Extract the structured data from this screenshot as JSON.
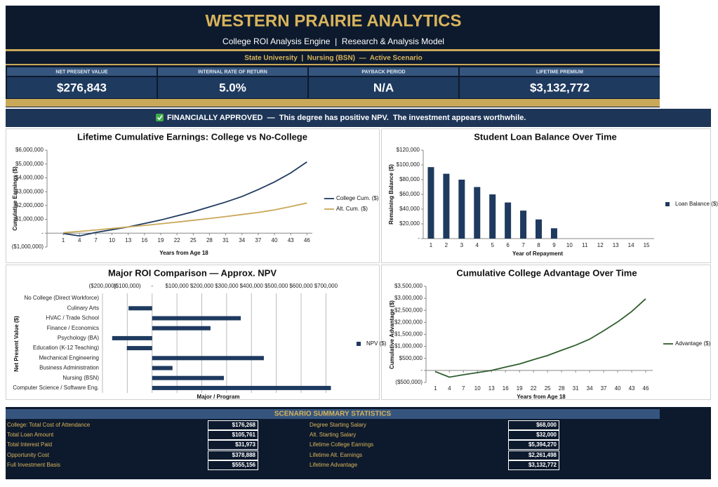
{
  "header": {
    "title": "WESTERN PRAIRIE ANALYTICS",
    "subtitle": "College ROI Analysis Engine  |  Research & Analysis Model",
    "scenario": "State University  |  Nursing (BSN)  —  Active Scenario"
  },
  "kpis": [
    {
      "label": "NET PRESENT VALUE",
      "value": "$276,843"
    },
    {
      "label": "INTERNAL RATE OF RETURN",
      "value": "5.0%"
    },
    {
      "label": "PAYBACK PERIOD",
      "value": "N/A"
    },
    {
      "label": "LIFETIME PREMIUM",
      "value": "$3,132,772"
    }
  ],
  "status": "FINANCIALLY APPROVED  —  This degree has positive NPV.  The investment appears worthwhile.",
  "chart_data": [
    {
      "type": "line",
      "title": "Lifetime Cumulative Earnings: College vs No-College",
      "x_label": "Years from Age 18",
      "y_label": "Cumulative Earnings ($)",
      "x": [
        1,
        4,
        7,
        10,
        13,
        16,
        19,
        22,
        25,
        28,
        31,
        34,
        37,
        40,
        43,
        46
      ],
      "series": [
        {
          "name": "College Cum. ($)",
          "color": "#1f3a5f",
          "values": [
            -20000,
            -200000,
            50000,
            250000,
            450000,
            700000,
            950000,
            1250000,
            1550000,
            1900000,
            2250000,
            2650000,
            3150000,
            3700000,
            4350000,
            5150000
          ]
        },
        {
          "name": "Alt. Cum. ($)",
          "color": "#c9a85a",
          "values": [
            30000,
            130000,
            230000,
            340000,
            450000,
            560000,
            680000,
            800000,
            930000,
            1060000,
            1200000,
            1350000,
            1500000,
            1680000,
            1920000,
            2180000
          ]
        }
      ],
      "xlim": [
        -2,
        47
      ],
      "xticks": [
        1,
        4,
        7,
        10,
        13,
        16,
        19,
        22,
        25,
        28,
        31,
        34,
        37,
        40,
        43,
        46
      ],
      "ylim": [
        -1000000,
        6000000
      ],
      "yticks": [
        {
          "value": -1000000,
          "label": "($1,000,000)"
        },
        {
          "value": 0,
          "label": "-"
        },
        {
          "value": 1000000,
          "label": "$1,000,000"
        },
        {
          "value": 2000000,
          "label": "$2,000,000"
        },
        {
          "value": 3000000,
          "label": "$3,000,000"
        },
        {
          "value": 4000000,
          "label": "$4,000,000"
        },
        {
          "value": 5000000,
          "label": "$5,000,000"
        },
        {
          "value": 6000000,
          "label": "$6,000,000"
        }
      ],
      "grid": false,
      "legend": "right"
    },
    {
      "type": "bar",
      "title": "Student Loan Balance Over Time",
      "x_label": "Year of Repayment",
      "y_label": "Remaining Balance ($)",
      "categories": [
        1,
        2,
        3,
        4,
        5,
        6,
        7,
        8,
        9,
        10,
        11,
        12,
        13,
        14,
        15
      ],
      "series": [
        {
          "name": "Loan Balance ($)",
          "color": "#1f3a5f",
          "values": [
            97000,
            88000,
            80000,
            70000,
            60000,
            49000,
            38000,
            26000,
            14000,
            0,
            0,
            0,
            0,
            0,
            0
          ]
        }
      ],
      "ylim": [
        0,
        120000
      ],
      "yticks": [
        {
          "value": 0,
          "label": "-"
        },
        {
          "value": 20000,
          "label": "$20,000"
        },
        {
          "value": 40000,
          "label": "$40,000"
        },
        {
          "value": 60000,
          "label": "$60,000"
        },
        {
          "value": 80000,
          "label": "$80,000"
        },
        {
          "value": 100000,
          "label": "$100,000"
        },
        {
          "value": 120000,
          "label": "$120,000"
        }
      ],
      "grid": false,
      "legend": "right"
    },
    {
      "type": "barh",
      "title": "Major ROI Comparison — Approx. NPV",
      "x_label": "Major / Program",
      "y_label": "Net Present Value ($)",
      "categories": [
        "No College (Direct Workforce)",
        "Culinary Arts",
        "HVAC / Trade School",
        "Finance / Economics",
        "Psychology (BA)",
        "Education (K-12 Teaching)",
        "Mechanical Engineering",
        "Business Administration",
        "Nursing (BSN)",
        "Computer Science / Software Eng."
      ],
      "series": [
        {
          "name": "NPV ($)",
          "color": "#1f3a5f",
          "values": [
            0,
            -95000,
            357000,
            235000,
            -161000,
            -102000,
            450000,
            82000,
            289000,
            720000
          ]
        }
      ],
      "xlim": [
        -200000,
        730000
      ],
      "xticks": [
        {
          "value": -200000,
          "label": "($200,000)"
        },
        {
          "value": -100000,
          "label": "($100,000)"
        },
        {
          "value": 0,
          "label": "-"
        },
        {
          "value": 100000,
          "label": "$100,000"
        },
        {
          "value": 200000,
          "label": "$200,000"
        },
        {
          "value": 300000,
          "label": "$300,000"
        },
        {
          "value": 400000,
          "label": "$400,000"
        },
        {
          "value": 500000,
          "label": "$500,000"
        },
        {
          "value": 600000,
          "label": "$600,000"
        },
        {
          "value": 700000,
          "label": "$700,000"
        }
      ],
      "grid": true,
      "legend": "right"
    },
    {
      "type": "line",
      "title": "Cumulative College Advantage Over Time",
      "x_label": "Years from Age 18",
      "y_label": "Cumulative Advantage ($)",
      "x": [
        1,
        4,
        7,
        10,
        13,
        16,
        19,
        22,
        25,
        28,
        31,
        34,
        37,
        40,
        43,
        46
      ],
      "series": [
        {
          "name": "Advantage ($)",
          "color": "#2e5e2e",
          "values": [
            -50000,
            -280000,
            -180000,
            -90000,
            0,
            140000,
            270000,
            450000,
            620000,
            840000,
            1050000,
            1300000,
            1650000,
            2020000,
            2450000,
            2980000
          ]
        }
      ],
      "xlim": [
        -1,
        47.5
      ],
      "xticks": [
        1,
        4,
        7,
        10,
        13,
        16,
        19,
        22,
        25,
        28,
        31,
        34,
        37,
        40,
        43,
        46
      ],
      "ylim": [
        -500000,
        3500000
      ],
      "yticks": [
        {
          "value": -500000,
          "label": "($500,000)"
        },
        {
          "value": 0,
          "label": "-"
        },
        {
          "value": 500000,
          "label": "$500,000"
        },
        {
          "value": 1000000,
          "label": "$1,000,000"
        },
        {
          "value": 1500000,
          "label": "$1,500,000"
        },
        {
          "value": 2000000,
          "label": "$2,000,000"
        },
        {
          "value": 2500000,
          "label": "$2,500,000"
        },
        {
          "value": 3000000,
          "label": "$3,000,000"
        },
        {
          "value": 3500000,
          "label": "$3,500,000"
        }
      ],
      "grid": false,
      "legend": "right"
    }
  ],
  "summary": {
    "title": "SCENARIO SUMMARY STATISTICS",
    "left": [
      {
        "label": "College: Total Cost of Attendance",
        "value": "$176,268"
      },
      {
        "label": "Total Loan Amount",
        "value": "$105,761"
      },
      {
        "label": "Total Interest Paid",
        "value": "$31,973"
      },
      {
        "label": "Opportunity Cost",
        "value": "$378,888"
      },
      {
        "label": "Full Investment Basis",
        "value": "$555,156"
      }
    ],
    "right": [
      {
        "label": "Degree Starting Salary",
        "value": "$68,000"
      },
      {
        "label": "Alt. Starting Salary",
        "value": "$32,000"
      },
      {
        "label": "Lifetime College Earnings",
        "value": "$5,394,270"
      },
      {
        "label": "Lifetime Alt. Earnings",
        "value": "$2,261,498"
      },
      {
        "label": "Lifetime Advantage",
        "value": "$3,132,772"
      }
    ]
  }
}
